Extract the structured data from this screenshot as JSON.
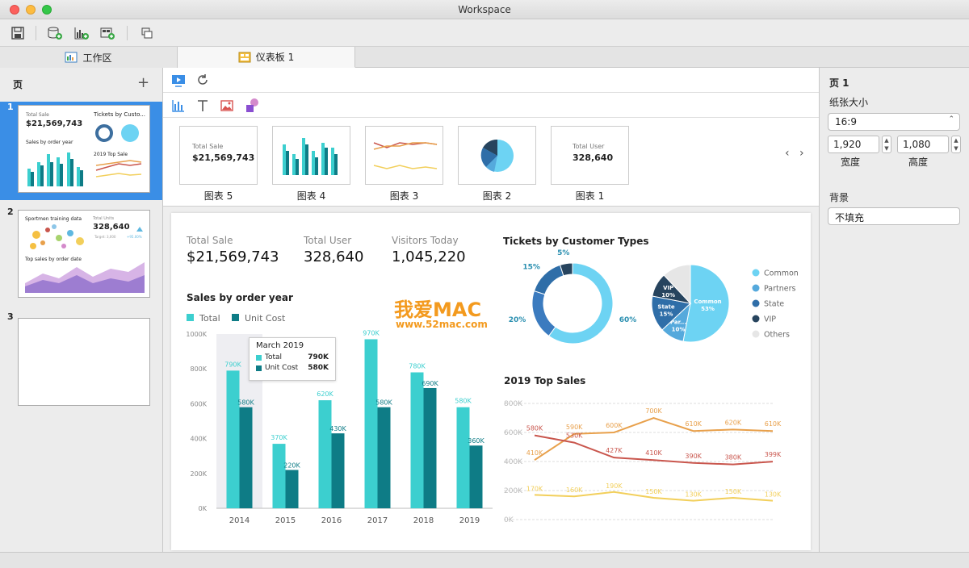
{
  "window": {
    "title": "Workspace"
  },
  "toolbar": {
    "icons": [
      "save-icon",
      "add-datasource-icon",
      "add-chart-icon",
      "add-dashboard-icon",
      "window-icon"
    ]
  },
  "tabs": [
    {
      "label": "工作区",
      "icon": "workspace-icon"
    },
    {
      "label": "仪表板 1",
      "icon": "dashboard-icon"
    }
  ],
  "sidebar": {
    "header": "页",
    "pages": [
      {
        "num": "1",
        "kpi_label": "Total Sale",
        "kpi_value": "$21,569,743",
        "t2": "Tickets by Custo...",
        "t3": "Sales by order year",
        "t4": "2019 Top Sale"
      },
      {
        "num": "2",
        "t1": "Sportmen training data",
        "kpi_label": "Total Units",
        "kpi_value": "328,640",
        "target": "Target: 3,000",
        "delta": "+95.00%",
        "t2": "Top sales by order date"
      },
      {
        "num": "3"
      }
    ]
  },
  "gallery": {
    "items": [
      {
        "label": "图表 5",
        "kpi_label": "Total Sale",
        "kpi_value": "$21,569,743"
      },
      {
        "label": "图表 4"
      },
      {
        "label": "图表 3"
      },
      {
        "label": "图表 2"
      },
      {
        "label": "图表 1",
        "kpi_label": "Total User",
        "kpi_value": "328,640"
      }
    ]
  },
  "dashboard": {
    "kpis": [
      {
        "label": "Total Sale",
        "value": "$21,569,743"
      },
      {
        "label": "Total User",
        "value": "328,640"
      },
      {
        "label": "Visitors Today",
        "value": "1,045,220"
      }
    ],
    "watermark": {
      "brand": "我爱MAC",
      "url": "www.52mac.com"
    }
  },
  "right_panel": {
    "title": "页 1",
    "paper_size_label": "纸张大小",
    "paper_size_value": "16:9",
    "width_value": "1,920",
    "height_value": "1,080",
    "width_label": "宽度",
    "height_label": "高度",
    "background_label": "背景",
    "background_value": "不填充"
  },
  "chart_data": [
    {
      "type": "bar",
      "title": "Sales by order year",
      "categories": [
        "2014",
        "2015",
        "2016",
        "2017",
        "2018",
        "2019"
      ],
      "series": [
        {
          "name": "Total",
          "values": [
            790,
            370,
            620,
            970,
            780,
            580
          ],
          "labels": [
            "790K",
            "370K",
            "620K",
            "970K",
            "780K",
            "580K"
          ],
          "color": "#3ccfcf"
        },
        {
          "name": "Unit Cost",
          "values": [
            580,
            220,
            430,
            580,
            690,
            360
          ],
          "labels": [
            "580K",
            "220K",
            "430K",
            "580K",
            "690K",
            "360K"
          ],
          "color": "#0e7c86"
        }
      ],
      "yticks": [
        "0K",
        "200K",
        "400K",
        "600K",
        "800K",
        "1000K"
      ],
      "ylim": [
        0,
        1000
      ],
      "highlight_category": "2014",
      "tooltip": {
        "title": "March 2019",
        "rows": [
          {
            "name": "Total",
            "value": "790K"
          },
          {
            "name": "Unit Cost",
            "value": "580K"
          }
        ]
      }
    },
    {
      "type": "pie",
      "title": "Tickets by Customer Types",
      "donut": {
        "slices": [
          {
            "name": "Common",
            "value": 60,
            "label": "60%",
            "color": "#6dd3f3"
          },
          {
            "name": "State",
            "value": 20,
            "label": "20%",
            "color": "#3b7bbf"
          },
          {
            "name": "Partners",
            "value": 15,
            "label": "15%",
            "color": "#2f6ea8"
          },
          {
            "name": "VIP",
            "value": 5,
            "label": "5%",
            "color": "#27445e"
          }
        ]
      },
      "pie": {
        "slices": [
          {
            "name": "Common",
            "value": 53,
            "label": "Common\n53%",
            "color": "#6dd3f3"
          },
          {
            "name": "Partners",
            "value": 10,
            "label": "Par...\n10%",
            "color": "#55a9dc"
          },
          {
            "name": "State",
            "value": 15,
            "label": "State\n15%",
            "color": "#2f6ea8"
          },
          {
            "name": "VIP",
            "value": 10,
            "label": "VIP\n10%",
            "color": "#27445e"
          },
          {
            "name": "Others",
            "value": 12,
            "label": "",
            "color": "#e6e6e6"
          }
        ]
      },
      "legend": [
        {
          "name": "Common",
          "color": "#6dd3f3"
        },
        {
          "name": "Partners",
          "color": "#55a9dc"
        },
        {
          "name": "State",
          "color": "#2f6ea8"
        },
        {
          "name": "VIP",
          "color": "#27445e"
        },
        {
          "name": "Others",
          "color": "#e6e6e6"
        }
      ]
    },
    {
      "type": "line",
      "title": "2019 Top Sales",
      "yticks": [
        "0K",
        "200K",
        "400K",
        "600K",
        "800K"
      ],
      "ylim": [
        0,
        800
      ],
      "points": 7,
      "series": [
        {
          "color": "#e8a04b",
          "values": [
            410,
            590,
            600,
            700,
            610,
            620,
            610
          ],
          "labels": [
            "410K",
            "590K",
            "600K",
            "700K",
            "610K",
            "620K",
            "610K"
          ]
        },
        {
          "color": "#c9564d",
          "values": [
            580,
            530,
            427,
            410,
            390,
            380,
            399
          ],
          "labels": [
            "580K",
            "530K",
            "427K",
            "410K",
            "390K",
            "380K",
            "399K"
          ]
        },
        {
          "color": "#f2cf5b",
          "values": [
            170,
            160,
            190,
            150,
            130,
            150,
            130
          ],
          "labels": [
            "170K",
            "160K",
            "190K",
            "150K",
            "130K",
            "150K",
            "130K"
          ]
        }
      ]
    }
  ]
}
